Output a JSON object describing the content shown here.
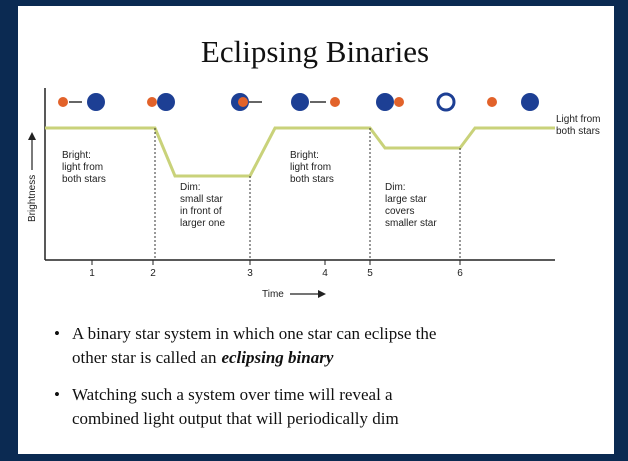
{
  "title": "Eclipsing Binaries",
  "diagram": {
    "y_axis_label": "Brightness",
    "x_axis_label": "Time",
    "time_ticks": [
      "1",
      "2",
      "3",
      "4",
      "5",
      "6"
    ],
    "labels": [
      {
        "lines": [
          "Bright:",
          "light from",
          "both stars"
        ]
      },
      {
        "lines": [
          "Dim:",
          "small star",
          "in front of",
          "larger one"
        ]
      },
      {
        "lines": [
          "Bright:",
          "light from",
          "both stars"
        ]
      },
      {
        "lines": [
          "Dim:",
          "large star",
          "covers",
          "smaller star"
        ]
      },
      {
        "lines": [
          "Light from",
          "both stars"
        ]
      }
    ]
  },
  "bullets": [
    {
      "lines": [
        "A binary star system in which one star can eclipse the",
        "other star is called an"
      ],
      "emphasis": "eclipsing binary"
    },
    {
      "lines": [
        "Watching such a system over time will reveal a",
        "combined light output that will periodically dim"
      ]
    }
  ]
}
